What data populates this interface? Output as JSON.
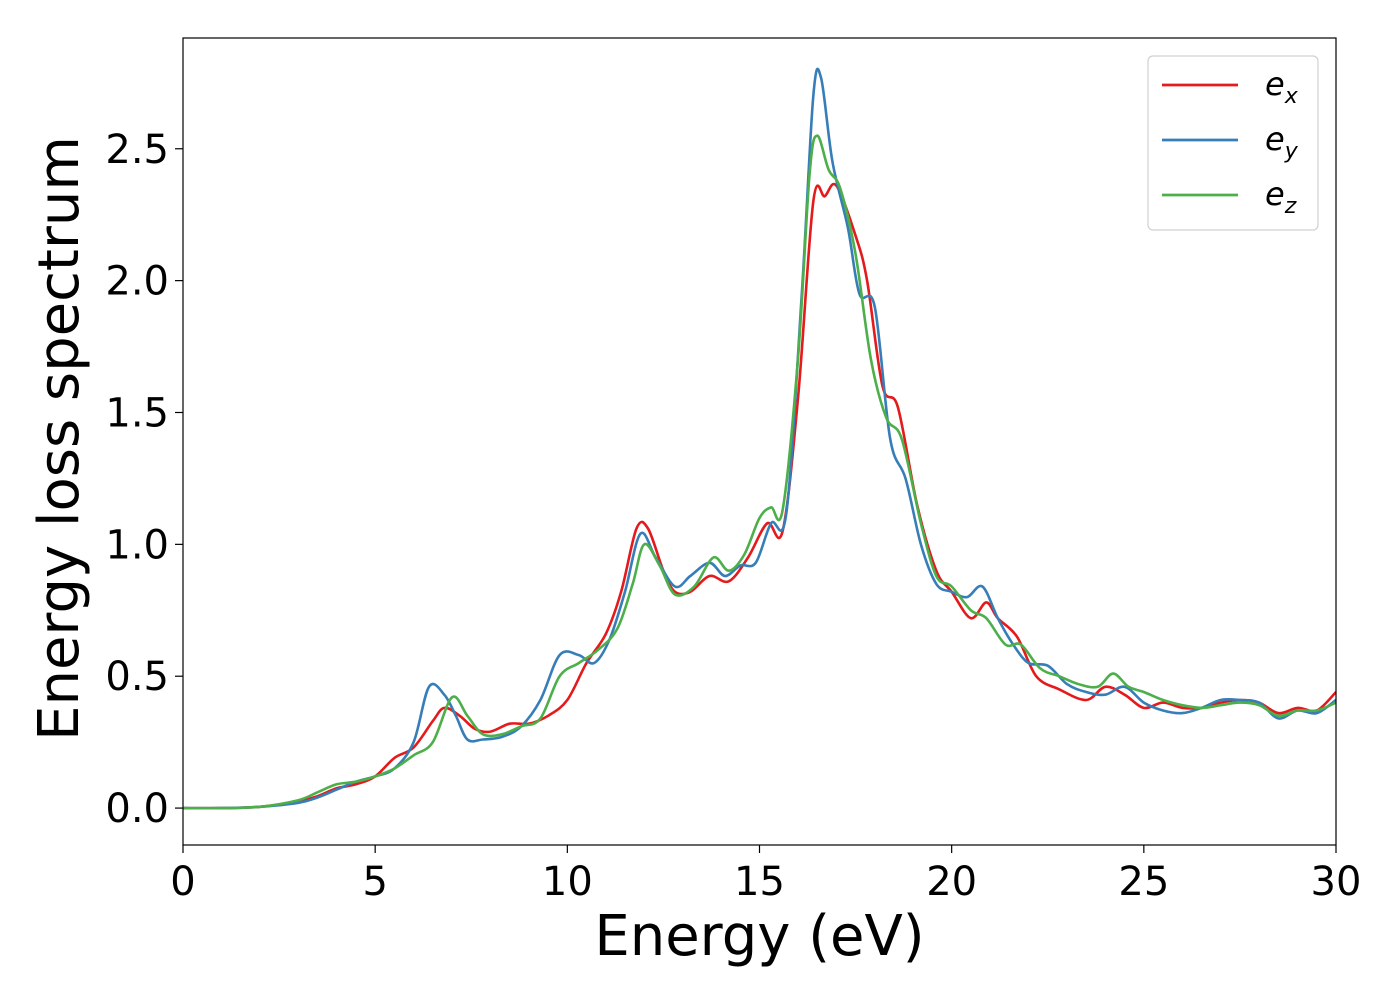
{
  "chart_data": {
    "type": "line",
    "xlabel": "Energy (eV)",
    "ylabel": "Energy loss spectrum",
    "xlim": [
      0,
      30
    ],
    "ylim": [
      -0.14,
      2.92
    ],
    "xticks": [
      0,
      5,
      10,
      15,
      20,
      25,
      30
    ],
    "xtick_labels": [
      "0",
      "5",
      "10",
      "15",
      "20",
      "25",
      "30"
    ],
    "yticks": [
      0.0,
      0.5,
      1.0,
      1.5,
      2.0,
      2.5
    ],
    "ytick_labels": [
      "0.0",
      "0.5",
      "1.0",
      "1.5",
      "2.0",
      "2.5"
    ],
    "grid": false,
    "legend_position": "top-right",
    "series": [
      {
        "name": "e_x",
        "label_main": "e",
        "label_sub": "x",
        "color": "#e41a1c",
        "points": [
          [
            0,
            0
          ],
          [
            1,
            0.0
          ],
          [
            2,
            0.005
          ],
          [
            3,
            0.025
          ],
          [
            3.5,
            0.045
          ],
          [
            4,
            0.075
          ],
          [
            4.5,
            0.09
          ],
          [
            5,
            0.12
          ],
          [
            5.5,
            0.19
          ],
          [
            6,
            0.23
          ],
          [
            6.5,
            0.33
          ],
          [
            6.8,
            0.38
          ],
          [
            7.2,
            0.35
          ],
          [
            7.6,
            0.3
          ],
          [
            8,
            0.29
          ],
          [
            8.5,
            0.32
          ],
          [
            9,
            0.32
          ],
          [
            9.5,
            0.35
          ],
          [
            10,
            0.41
          ],
          [
            10.5,
            0.55
          ],
          [
            11,
            0.66
          ],
          [
            11.4,
            0.82
          ],
          [
            11.8,
            1.06
          ],
          [
            12.1,
            1.06
          ],
          [
            12.5,
            0.9
          ],
          [
            12.8,
            0.82
          ],
          [
            13.2,
            0.82
          ],
          [
            13.7,
            0.88
          ],
          [
            14.2,
            0.86
          ],
          [
            14.7,
            0.95
          ],
          [
            15.2,
            1.08
          ],
          [
            15.6,
            1.05
          ],
          [
            16,
            1.55
          ],
          [
            16.4,
            2.3
          ],
          [
            16.7,
            2.32
          ],
          [
            17,
            2.36
          ],
          [
            17.5,
            2.17
          ],
          [
            17.8,
            2.0
          ],
          [
            18.2,
            1.6
          ],
          [
            18.6,
            1.52
          ],
          [
            19.1,
            1.15
          ],
          [
            19.6,
            0.9
          ],
          [
            20,
            0.82
          ],
          [
            20.5,
            0.72
          ],
          [
            20.9,
            0.78
          ],
          [
            21.2,
            0.72
          ],
          [
            21.7,
            0.65
          ],
          [
            22.2,
            0.5
          ],
          [
            22.8,
            0.45
          ],
          [
            23.5,
            0.41
          ],
          [
            24,
            0.46
          ],
          [
            24.5,
            0.43
          ],
          [
            25,
            0.38
          ],
          [
            25.5,
            0.4
          ],
          [
            26,
            0.38
          ],
          [
            26.5,
            0.38
          ],
          [
            27,
            0.4
          ],
          [
            27.5,
            0.41
          ],
          [
            28,
            0.4
          ],
          [
            28.5,
            0.36
          ],
          [
            29,
            0.38
          ],
          [
            29.5,
            0.37
          ],
          [
            30,
            0.44
          ]
        ]
      },
      {
        "name": "e_y",
        "label_main": "e",
        "label_sub": "y",
        "color": "#377eb8",
        "points": [
          [
            0,
            0
          ],
          [
            1,
            0.0
          ],
          [
            2,
            0.005
          ],
          [
            3,
            0.02
          ],
          [
            3.5,
            0.04
          ],
          [
            4,
            0.07
          ],
          [
            4.5,
            0.1
          ],
          [
            5,
            0.12
          ],
          [
            5.5,
            0.15
          ],
          [
            6,
            0.25
          ],
          [
            6.4,
            0.46
          ],
          [
            6.8,
            0.43
          ],
          [
            7.1,
            0.35
          ],
          [
            7.4,
            0.26
          ],
          [
            7.8,
            0.26
          ],
          [
            8.3,
            0.27
          ],
          [
            8.8,
            0.31
          ],
          [
            9.3,
            0.41
          ],
          [
            9.8,
            0.58
          ],
          [
            10.3,
            0.58
          ],
          [
            10.7,
            0.55
          ],
          [
            11.1,
            0.64
          ],
          [
            11.5,
            0.82
          ],
          [
            11.9,
            1.04
          ],
          [
            12.3,
            0.95
          ],
          [
            12.8,
            0.84
          ],
          [
            13.2,
            0.88
          ],
          [
            13.7,
            0.93
          ],
          [
            14.1,
            0.88
          ],
          [
            14.5,
            0.92
          ],
          [
            14.9,
            0.93
          ],
          [
            15.3,
            1.08
          ],
          [
            15.7,
            1.12
          ],
          [
            16.1,
            1.95
          ],
          [
            16.4,
            2.7
          ],
          [
            16.6,
            2.77
          ],
          [
            16.9,
            2.45
          ],
          [
            17.3,
            2.2
          ],
          [
            17.6,
            1.95
          ],
          [
            18,
            1.9
          ],
          [
            18.4,
            1.4
          ],
          [
            18.8,
            1.25
          ],
          [
            19.2,
            1.0
          ],
          [
            19.6,
            0.85
          ],
          [
            20,
            0.82
          ],
          [
            20.4,
            0.8
          ],
          [
            20.8,
            0.84
          ],
          [
            21.2,
            0.72
          ],
          [
            21.6,
            0.62
          ],
          [
            22,
            0.55
          ],
          [
            22.5,
            0.54
          ],
          [
            23,
            0.47
          ],
          [
            23.5,
            0.44
          ],
          [
            24,
            0.43
          ],
          [
            24.5,
            0.46
          ],
          [
            25,
            0.4
          ],
          [
            25.5,
            0.37
          ],
          [
            26,
            0.36
          ],
          [
            26.5,
            0.38
          ],
          [
            27,
            0.41
          ],
          [
            27.5,
            0.41
          ],
          [
            28,
            0.4
          ],
          [
            28.5,
            0.34
          ],
          [
            29,
            0.37
          ],
          [
            29.5,
            0.36
          ],
          [
            30,
            0.41
          ]
        ]
      },
      {
        "name": "e_z",
        "label_main": "e",
        "label_sub": "z",
        "color": "#4daf4a",
        "points": [
          [
            0,
            0
          ],
          [
            1,
            0.0
          ],
          [
            2,
            0.005
          ],
          [
            3,
            0.03
          ],
          [
            3.5,
            0.06
          ],
          [
            4,
            0.09
          ],
          [
            4.5,
            0.1
          ],
          [
            5,
            0.12
          ],
          [
            5.5,
            0.15
          ],
          [
            6,
            0.2
          ],
          [
            6.5,
            0.25
          ],
          [
            7,
            0.42
          ],
          [
            7.4,
            0.35
          ],
          [
            7.8,
            0.28
          ],
          [
            8.3,
            0.28
          ],
          [
            8.8,
            0.31
          ],
          [
            9.3,
            0.34
          ],
          [
            9.8,
            0.5
          ],
          [
            10.3,
            0.55
          ],
          [
            10.8,
            0.6
          ],
          [
            11.3,
            0.68
          ],
          [
            11.7,
            0.85
          ],
          [
            12,
            1.0
          ],
          [
            12.4,
            0.92
          ],
          [
            12.8,
            0.81
          ],
          [
            13.3,
            0.84
          ],
          [
            13.8,
            0.95
          ],
          [
            14.2,
            0.9
          ],
          [
            14.6,
            0.96
          ],
          [
            15,
            1.1
          ],
          [
            15.3,
            1.14
          ],
          [
            15.6,
            1.13
          ],
          [
            16,
            1.7
          ],
          [
            16.3,
            2.4
          ],
          [
            16.5,
            2.55
          ],
          [
            16.8,
            2.42
          ],
          [
            17.1,
            2.35
          ],
          [
            17.5,
            2.1
          ],
          [
            17.9,
            1.7
          ],
          [
            18.3,
            1.48
          ],
          [
            18.7,
            1.4
          ],
          [
            19.2,
            1.08
          ],
          [
            19.6,
            0.88
          ],
          [
            20,
            0.84
          ],
          [
            20.5,
            0.75
          ],
          [
            20.9,
            0.72
          ],
          [
            21.4,
            0.62
          ],
          [
            21.8,
            0.62
          ],
          [
            22.3,
            0.53
          ],
          [
            22.8,
            0.5
          ],
          [
            23.3,
            0.47
          ],
          [
            23.8,
            0.46
          ],
          [
            24.2,
            0.51
          ],
          [
            24.6,
            0.46
          ],
          [
            25,
            0.44
          ],
          [
            25.5,
            0.41
          ],
          [
            26,
            0.39
          ],
          [
            26.5,
            0.38
          ],
          [
            27,
            0.39
          ],
          [
            27.5,
            0.4
          ],
          [
            28,
            0.39
          ],
          [
            28.5,
            0.35
          ],
          [
            29,
            0.37
          ],
          [
            29.5,
            0.37
          ],
          [
            30,
            0.4
          ]
        ]
      }
    ]
  }
}
